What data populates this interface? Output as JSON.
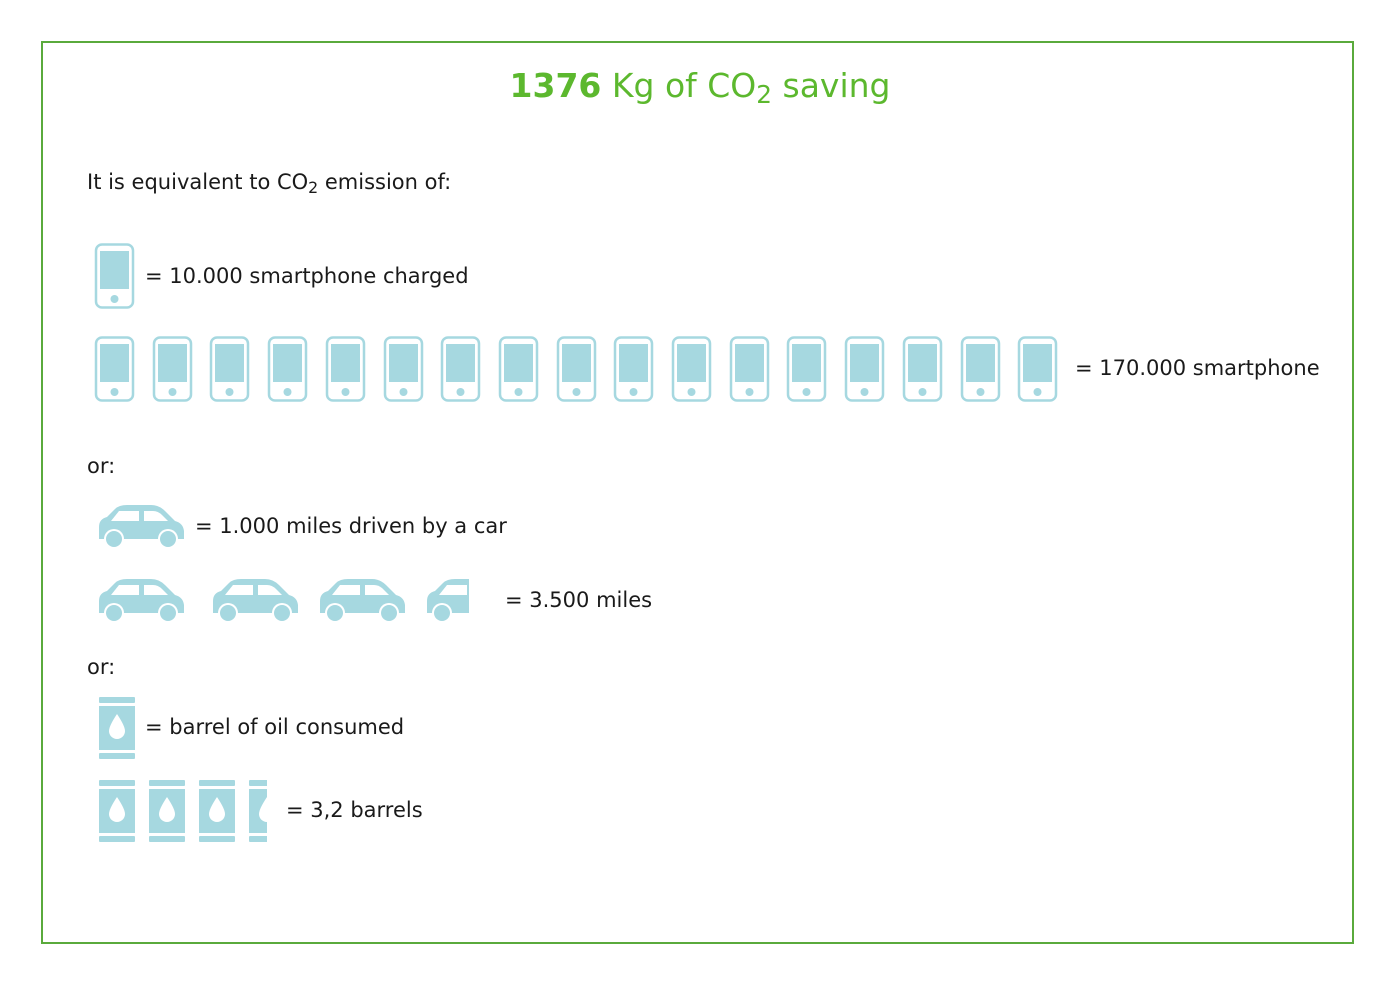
{
  "title": {
    "amount": "1376",
    "unit_prefix": " Kg of CO",
    "subscript": "2",
    "suffix": " saving"
  },
  "intro": {
    "prefix": "It is equivalent to CO",
    "subscript": "2",
    "suffix": " emission of:"
  },
  "colors": {
    "frame": "#5aaa3c",
    "title": "#5cb82e",
    "icon_fill": "#a6d8e0"
  },
  "smartphone": {
    "unit_label": "= 10.000 smartphone charged",
    "total_label": "= 170.000 smartphone",
    "icon": "smartphone-icon",
    "icon_count": 17
  },
  "separator_1": "or:",
  "car": {
    "unit_label": "= 1.000 miles driven by a car",
    "total_label": "= 3.500 miles",
    "icon": "car-icon",
    "value": 3.5
  },
  "separator_2": "or:",
  "barrel": {
    "unit_label": "= barrel of oil consumed",
    "total_label": "= 3,2 barrels",
    "icon": "oil-barrel-icon",
    "value": 3.2
  }
}
